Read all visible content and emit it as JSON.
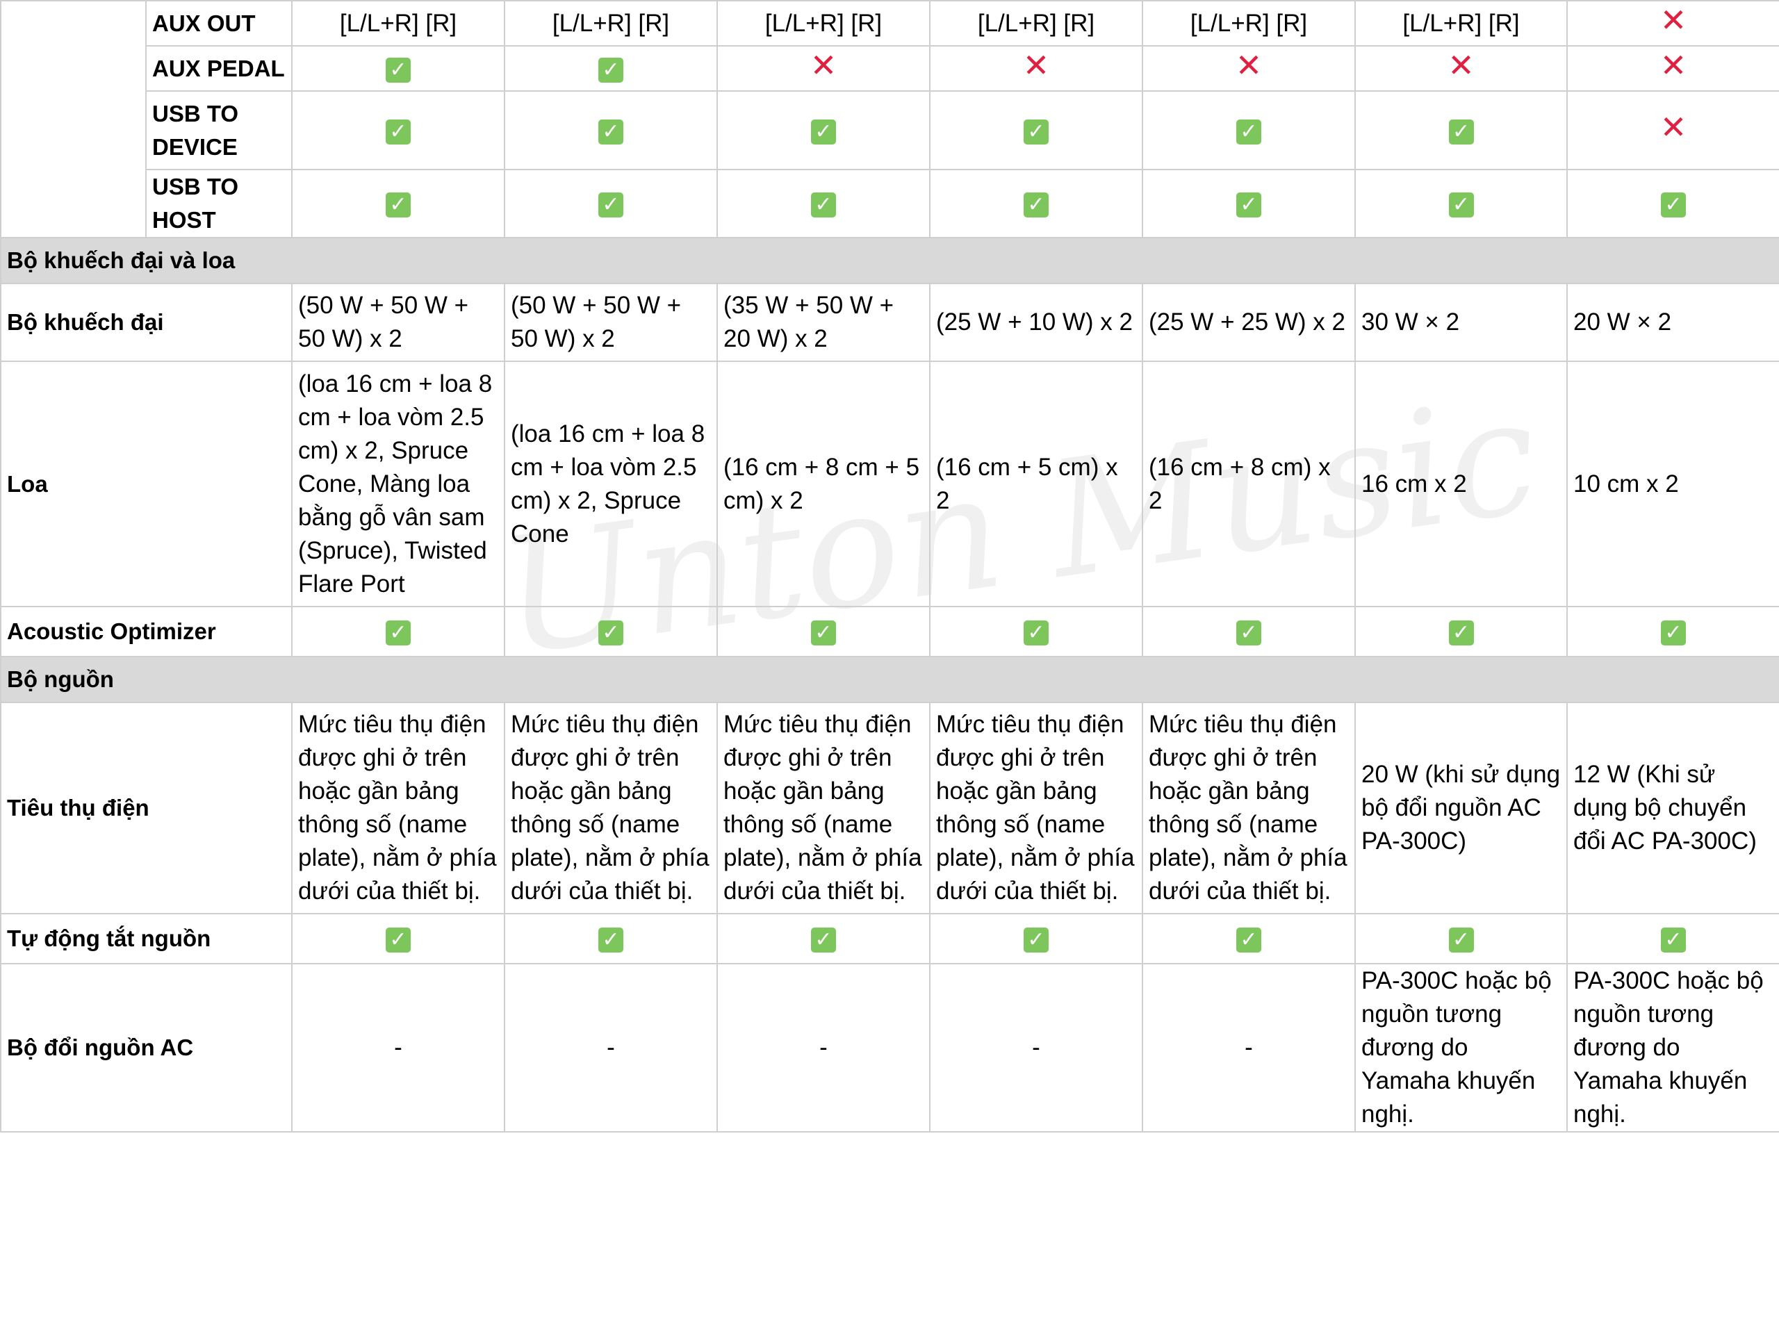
{
  "watermark": "Unton Music",
  "icons": {
    "check": "✓",
    "cross": "✕",
    "check_color": "#7cc65b",
    "cross_color": "#e02040"
  },
  "aux_out": {
    "label": "AUX OUT",
    "values": [
      "[L/L+R] [R]",
      "[L/L+R] [R]",
      "[L/L+R] [R]",
      "[L/L+R] [R]",
      "[L/L+R] [R]",
      "[L/L+R] [R]"
    ],
    "last": "cross"
  },
  "aux_pedal": {
    "label": "AUX PEDAL",
    "marks": [
      "check",
      "check",
      "cross",
      "cross",
      "cross",
      "cross",
      "cross"
    ]
  },
  "usb_device": {
    "label_line1": "USB TO",
    "label_line2": "DEVICE",
    "marks": [
      "check",
      "check",
      "check",
      "check",
      "check",
      "check",
      "cross"
    ]
  },
  "usb_host": {
    "label": "USB TO HOST",
    "marks": [
      "check",
      "check",
      "check",
      "check",
      "check",
      "check",
      "check"
    ]
  },
  "section_amp": "Bộ khuếch đại và loa",
  "amplifier": {
    "label": "Bộ khuếch đại",
    "values": [
      "(50 W + 50 W + 50 W) x 2",
      "(50 W + 50 W + 50 W) x 2",
      "(35 W + 50 W + 20 W) x 2",
      "(25 W + 10 W) x 2",
      "(25 W + 25 W) x 2",
      "30 W × 2",
      "20 W × 2"
    ]
  },
  "speakers": {
    "label": "Loa",
    "values": [
      "(loa 16 cm + loa 8 cm + loa vòm 2.5 cm) x 2, Spruce Cone, Màng loa bằng gỗ vân sam (Spruce), Twisted Flare Port",
      "(loa 16 cm + loa 8 cm + loa vòm 2.5 cm) x 2, Spruce Cone",
      "(16 cm + 8 cm + 5 cm) x 2",
      "(16 cm + 5 cm) x 2",
      "(16 cm + 8 cm) x 2",
      "16 cm x 2",
      "10 cm x 2"
    ]
  },
  "acoustic": {
    "label": "Acoustic Optimizer",
    "marks": [
      "check",
      "check",
      "check",
      "check",
      "check",
      "check",
      "check"
    ]
  },
  "section_power": "Bộ nguồn",
  "power": {
    "label": "Tiêu thụ điện",
    "values": [
      "Mức tiêu thụ điện được ghi ở trên hoặc gần bảng thông số (name plate), nằm ở phía dưới của thiết bị.",
      "Mức tiêu thụ điện được ghi ở trên hoặc gần bảng thông số (name plate), nằm ở phía dưới của thiết bị.",
      "Mức tiêu thụ điện được ghi ở trên hoặc gần bảng thông số (name plate), nằm ở phía dưới của thiết bị.",
      "Mức tiêu thụ điện được ghi ở trên hoặc gần bảng thông số (name plate), nằm ở phía dưới của thiết bị.",
      "Mức tiêu thụ điện được ghi ở trên hoặc gần bảng thông số (name plate), nằm ở phía dưới của thiết bị.",
      "20 W (khi sử dụng bộ đổi nguồn AC PA-300C)",
      "12 W (Khi sử dụng bộ chuyển đổi AC PA-300C)"
    ]
  },
  "auto_off": {
    "label": "Tự động tắt nguồn",
    "marks": [
      "check",
      "check",
      "check",
      "check",
      "check",
      "check",
      "check"
    ]
  },
  "adapter": {
    "label": "Bộ đổi nguồn AC",
    "values": [
      "-",
      "-",
      "-",
      "-",
      "-",
      "PA-300C hoặc bộ nguồn tương đương do Yamaha khuyến nghị.",
      "PA-300C hoặc bộ nguồn tương đương do Yamaha khuyến nghị."
    ]
  }
}
